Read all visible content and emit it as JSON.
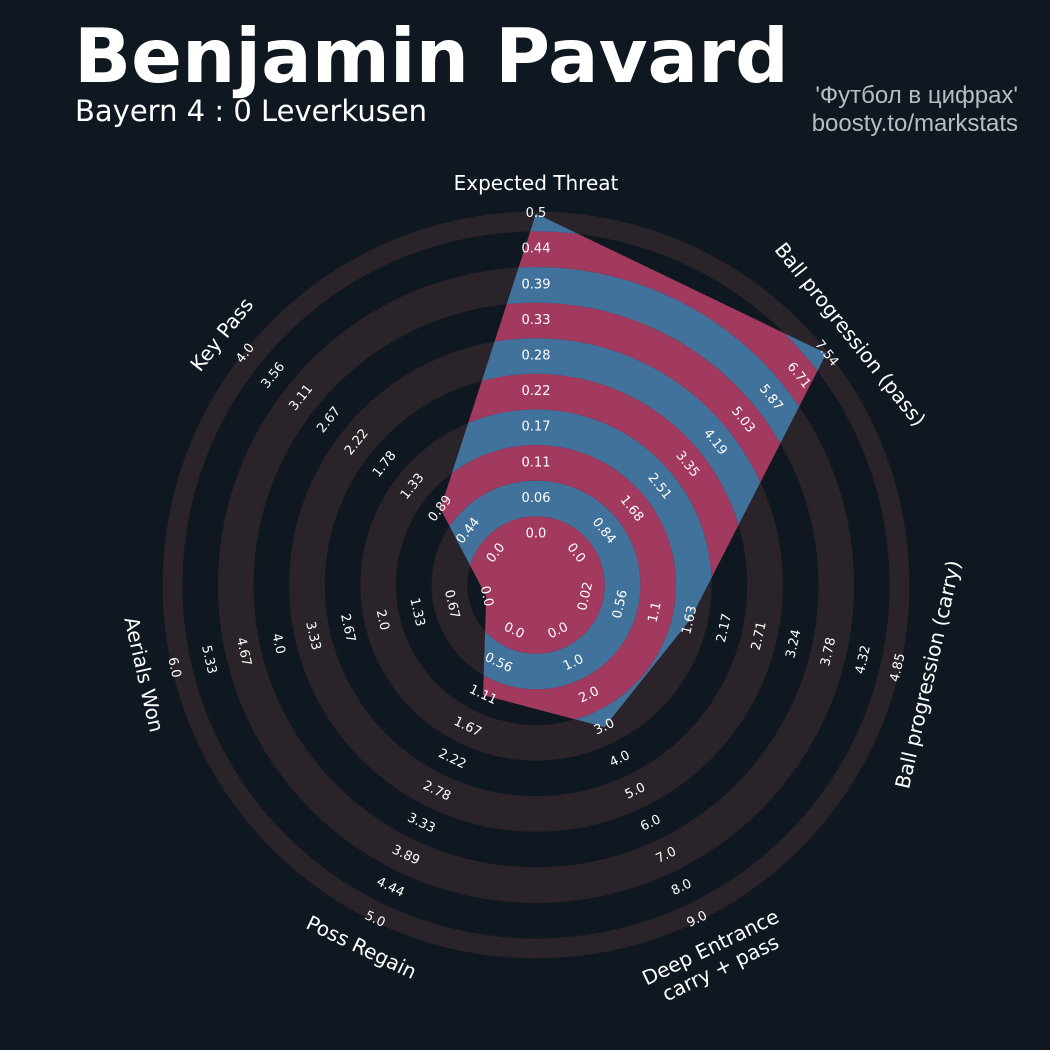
{
  "header": {
    "title": "Benjamin Pavard",
    "subtitle": "Bayern 4 : 0 Leverkusen",
    "credit_line1": "'Футбол в цифрах'",
    "credit_line2": "boosty.to/markstats"
  },
  "colors": {
    "background": "#0f1820",
    "ring_bg": "#2a2329",
    "fill_blue": "#41729c",
    "fill_red": "#a2395e",
    "text": "#ffffff"
  },
  "chart_data": {
    "type": "radar",
    "title": "Benjamin Pavard",
    "subtitle": "Bayern 4 : 0 Leverkusen",
    "legend": "none",
    "grid": true,
    "params": [
      {
        "name": "Expected Threat",
        "min": 0.0,
        "max": 0.5,
        "value": 0.5,
        "ticks": [
          "0.0",
          "0.06",
          "0.11",
          "0.17",
          "0.22",
          "0.28",
          "0.33",
          "0.39",
          "0.44",
          "0.5"
        ]
      },
      {
        "name": "Ball progression (pass)",
        "min": 0.0,
        "max": 7.54,
        "value": 7.54,
        "ticks": [
          "0.0",
          "0.84",
          "1.68",
          "2.51",
          "3.35",
          "4.19",
          "5.03",
          "5.87",
          "6.71",
          "7.54"
        ]
      },
      {
        "name": "Ball progression (carry)",
        "min": 0.02,
        "max": 4.85,
        "value": 1.63,
        "ticks": [
          "0.02",
          "0.56",
          "1.1",
          "1.63",
          "2.17",
          "2.71",
          "3.24",
          "3.78",
          "4.32",
          "4.85"
        ]
      },
      {
        "name": "Deep Entrance\ncarry + pass",
        "min": 0.0,
        "max": 9.0,
        "value": 3.0,
        "ticks": [
          "0.0",
          "1.0",
          "2.0",
          "3.0",
          "4.0",
          "5.0",
          "6.0",
          "7.0",
          "8.0",
          "9.0"
        ]
      },
      {
        "name": "Poss Regain",
        "min": 0.0,
        "max": 5.0,
        "value": 1.11,
        "ticks": [
          "0.0",
          "0.56",
          "1.11",
          "1.67",
          "2.22",
          "2.78",
          "3.33",
          "3.89",
          "4.44",
          "5.0"
        ]
      },
      {
        "name": "Aerials Won",
        "min": 0.0,
        "max": 6.0,
        "value": 0.0,
        "ticks": [
          "0.0",
          "0.67",
          "1.33",
          "2.0",
          "2.67",
          "3.33",
          "4.0",
          "4.67",
          "5.33",
          "6.0"
        ]
      },
      {
        "name": "Key Pass",
        "min": 0.0,
        "max": 4.0,
        "value": 0.89,
        "ticks": [
          "0.0",
          "0.44",
          "0.89",
          "1.33",
          "1.78",
          "2.22",
          "2.67",
          "3.11",
          "3.56",
          "4.0"
        ]
      }
    ]
  }
}
